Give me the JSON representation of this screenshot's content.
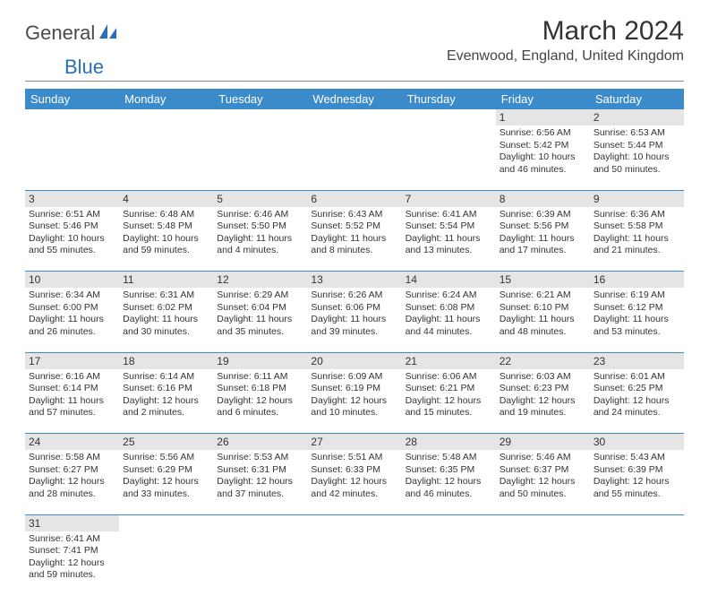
{
  "logo": {
    "part1": "General",
    "part2": "Blue"
  },
  "title": "March 2024",
  "location": "Evenwood, England, United Kingdom",
  "headers": [
    "Sunday",
    "Monday",
    "Tuesday",
    "Wednesday",
    "Thursday",
    "Friday",
    "Saturday"
  ],
  "colors": {
    "header_bg": "#3b8bca",
    "header_text": "#ffffff",
    "daynum_bg": "#e5e5e5",
    "border": "#3b8bca",
    "logo_gray": "#4a4a4a",
    "logo_blue": "#2a6fb5"
  },
  "typography": {
    "title_fontsize": 30,
    "location_fontsize": 16,
    "header_fontsize": 13,
    "cell_fontsize": 10.5,
    "daynum_fontsize": 12
  },
  "weeks": [
    [
      null,
      null,
      null,
      null,
      null,
      {
        "d": "1",
        "sr": "6:56 AM",
        "ss": "5:42 PM",
        "dl": "10 hours and 46 minutes."
      },
      {
        "d": "2",
        "sr": "6:53 AM",
        "ss": "5:44 PM",
        "dl": "10 hours and 50 minutes."
      }
    ],
    [
      {
        "d": "3",
        "sr": "6:51 AM",
        "ss": "5:46 PM",
        "dl": "10 hours and 55 minutes."
      },
      {
        "d": "4",
        "sr": "6:48 AM",
        "ss": "5:48 PM",
        "dl": "10 hours and 59 minutes."
      },
      {
        "d": "5",
        "sr": "6:46 AM",
        "ss": "5:50 PM",
        "dl": "11 hours and 4 minutes."
      },
      {
        "d": "6",
        "sr": "6:43 AM",
        "ss": "5:52 PM",
        "dl": "11 hours and 8 minutes."
      },
      {
        "d": "7",
        "sr": "6:41 AM",
        "ss": "5:54 PM",
        "dl": "11 hours and 13 minutes."
      },
      {
        "d": "8",
        "sr": "6:39 AM",
        "ss": "5:56 PM",
        "dl": "11 hours and 17 minutes."
      },
      {
        "d": "9",
        "sr": "6:36 AM",
        "ss": "5:58 PM",
        "dl": "11 hours and 21 minutes."
      }
    ],
    [
      {
        "d": "10",
        "sr": "6:34 AM",
        "ss": "6:00 PM",
        "dl": "11 hours and 26 minutes."
      },
      {
        "d": "11",
        "sr": "6:31 AM",
        "ss": "6:02 PM",
        "dl": "11 hours and 30 minutes."
      },
      {
        "d": "12",
        "sr": "6:29 AM",
        "ss": "6:04 PM",
        "dl": "11 hours and 35 minutes."
      },
      {
        "d": "13",
        "sr": "6:26 AM",
        "ss": "6:06 PM",
        "dl": "11 hours and 39 minutes."
      },
      {
        "d": "14",
        "sr": "6:24 AM",
        "ss": "6:08 PM",
        "dl": "11 hours and 44 minutes."
      },
      {
        "d": "15",
        "sr": "6:21 AM",
        "ss": "6:10 PM",
        "dl": "11 hours and 48 minutes."
      },
      {
        "d": "16",
        "sr": "6:19 AM",
        "ss": "6:12 PM",
        "dl": "11 hours and 53 minutes."
      }
    ],
    [
      {
        "d": "17",
        "sr": "6:16 AM",
        "ss": "6:14 PM",
        "dl": "11 hours and 57 minutes."
      },
      {
        "d": "18",
        "sr": "6:14 AM",
        "ss": "6:16 PM",
        "dl": "12 hours and 2 minutes."
      },
      {
        "d": "19",
        "sr": "6:11 AM",
        "ss": "6:18 PM",
        "dl": "12 hours and 6 minutes."
      },
      {
        "d": "20",
        "sr": "6:09 AM",
        "ss": "6:19 PM",
        "dl": "12 hours and 10 minutes."
      },
      {
        "d": "21",
        "sr": "6:06 AM",
        "ss": "6:21 PM",
        "dl": "12 hours and 15 minutes."
      },
      {
        "d": "22",
        "sr": "6:03 AM",
        "ss": "6:23 PM",
        "dl": "12 hours and 19 minutes."
      },
      {
        "d": "23",
        "sr": "6:01 AM",
        "ss": "6:25 PM",
        "dl": "12 hours and 24 minutes."
      }
    ],
    [
      {
        "d": "24",
        "sr": "5:58 AM",
        "ss": "6:27 PM",
        "dl": "12 hours and 28 minutes."
      },
      {
        "d": "25",
        "sr": "5:56 AM",
        "ss": "6:29 PM",
        "dl": "12 hours and 33 minutes."
      },
      {
        "d": "26",
        "sr": "5:53 AM",
        "ss": "6:31 PM",
        "dl": "12 hours and 37 minutes."
      },
      {
        "d": "27",
        "sr": "5:51 AM",
        "ss": "6:33 PM",
        "dl": "12 hours and 42 minutes."
      },
      {
        "d": "28",
        "sr": "5:48 AM",
        "ss": "6:35 PM",
        "dl": "12 hours and 46 minutes."
      },
      {
        "d": "29",
        "sr": "5:46 AM",
        "ss": "6:37 PM",
        "dl": "12 hours and 50 minutes."
      },
      {
        "d": "30",
        "sr": "5:43 AM",
        "ss": "6:39 PM",
        "dl": "12 hours and 55 minutes."
      }
    ],
    [
      {
        "d": "31",
        "sr": "6:41 AM",
        "ss": "7:41 PM",
        "dl": "12 hours and 59 minutes."
      },
      null,
      null,
      null,
      null,
      null,
      null
    ]
  ],
  "labels": {
    "sunrise": "Sunrise:",
    "sunset": "Sunset:",
    "daylight": "Daylight:"
  }
}
